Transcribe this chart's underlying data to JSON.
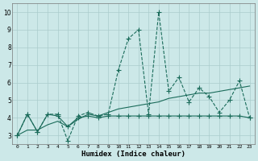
{
  "xlabel": "Humidex (Indice chaleur)",
  "background_color": "#cce8e8",
  "grid_color": "#aacccc",
  "line_color": "#1a6b5a",
  "xlim": [
    -0.5,
    23.5
  ],
  "ylim": [
    2.5,
    10.5
  ],
  "yticks": [
    3,
    4,
    5,
    6,
    7,
    8,
    9,
    10
  ],
  "xticks": [
    0,
    1,
    2,
    3,
    4,
    5,
    6,
    7,
    8,
    9,
    10,
    11,
    12,
    13,
    14,
    15,
    16,
    17,
    18,
    19,
    20,
    21,
    22,
    23
  ],
  "line1_x": [
    0,
    1,
    2,
    3,
    4,
    5,
    6,
    7,
    8,
    9,
    10,
    11,
    12,
    13,
    14,
    15,
    16,
    17,
    18,
    19,
    20,
    21,
    22,
    23
  ],
  "line1_y": [
    3.0,
    4.2,
    3.2,
    4.2,
    4.2,
    2.7,
    4.1,
    4.3,
    4.1,
    4.2,
    6.7,
    8.5,
    9.0,
    4.2,
    10.0,
    5.5,
    6.3,
    4.9,
    5.7,
    5.2,
    4.3,
    5.0,
    6.1,
    4.0
  ],
  "line2_x": [
    0,
    1,
    2,
    3,
    4,
    5,
    6,
    7,
    8,
    9,
    10,
    11,
    12,
    13,
    14,
    15,
    16,
    17,
    18,
    19,
    20,
    21,
    22,
    23
  ],
  "line2_y": [
    3.0,
    4.2,
    3.2,
    4.2,
    4.1,
    3.5,
    4.0,
    4.1,
    4.0,
    4.1,
    4.1,
    4.1,
    4.1,
    4.1,
    4.1,
    4.1,
    4.1,
    4.1,
    4.1,
    4.1,
    4.1,
    4.1,
    4.1,
    4.0
  ],
  "line3_x": [
    0,
    1,
    2,
    3,
    4,
    5,
    6,
    7,
    8,
    9,
    10,
    11,
    12,
    13,
    14,
    15,
    16,
    17,
    18,
    19,
    20,
    21,
    22,
    23
  ],
  "line3_y": [
    3.0,
    3.3,
    3.3,
    3.6,
    3.8,
    3.5,
    3.9,
    4.2,
    4.1,
    4.3,
    4.5,
    4.6,
    4.7,
    4.8,
    4.9,
    5.1,
    5.2,
    5.3,
    5.4,
    5.4,
    5.5,
    5.6,
    5.7,
    5.8
  ]
}
